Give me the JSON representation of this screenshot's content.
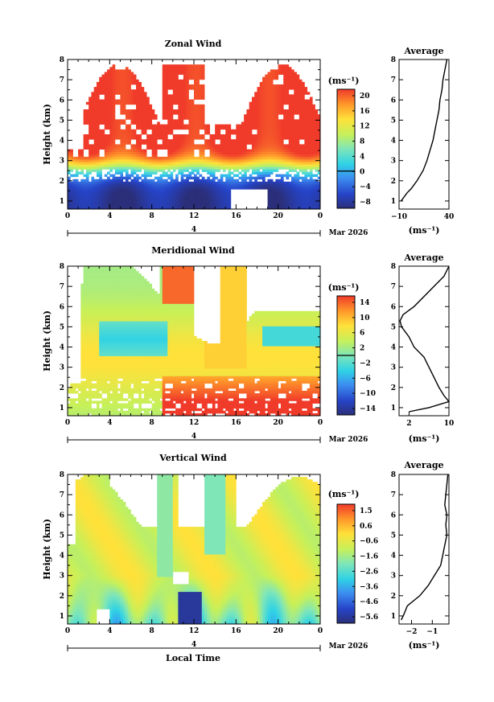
{
  "figure": {
    "xlabel": "Local Time",
    "date_label": "Mar 2026",
    "day_label": "4"
  },
  "chart_data": [
    {
      "type": "heatmap",
      "title": "Zonal Wind",
      "ylabel": "Height (km)",
      "xlabel": "Local Time",
      "x_ticks": [
        "0",
        "4",
        "8",
        "12",
        "16",
        "20",
        "0"
      ],
      "x_range": [
        0,
        24
      ],
      "y_ticks": [
        "1",
        "2",
        "3",
        "4",
        "5",
        "6",
        "7",
        "8"
      ],
      "y_range": [
        0.6,
        8.0
      ],
      "colorbar": {
        "unit": "(ms⁻¹)",
        "ticks": [
          "20",
          "16",
          "12",
          "8",
          "4",
          "0",
          "−4",
          "−8"
        ],
        "min": -10,
        "max": 22,
        "zero_contour": 0
      },
      "profile": {
        "title": "Average",
        "xlabel": "(ms⁻¹)",
        "x_ticks": [
          "−10",
          "40"
        ],
        "x_range": [
          -10,
          40
        ],
        "heights": [
          1.0,
          1.2,
          1.4,
          1.6,
          2.0,
          2.5,
          3.0,
          3.5,
          4.0,
          4.5,
          5.0,
          5.5,
          6.0,
          6.5,
          7.0,
          7.5,
          8.0
        ],
        "values": [
          -8,
          -5,
          -2,
          2,
          8,
          14,
          18,
          21,
          24,
          26,
          28,
          30,
          31,
          33,
          34,
          36,
          38
        ]
      }
    },
    {
      "type": "heatmap",
      "title": "Meridional Wind",
      "ylabel": "Height (km)",
      "xlabel": "Local Time",
      "x_ticks": [
        "0",
        "4",
        "8",
        "12",
        "16",
        "20",
        "0"
      ],
      "x_range": [
        0,
        24
      ],
      "y_ticks": [
        "1",
        "2",
        "3",
        "4",
        "5",
        "6",
        "7",
        "8"
      ],
      "y_range": [
        0.6,
        8.0
      ],
      "colorbar": {
        "unit": "(ms⁻¹)",
        "ticks": [
          "14",
          "10",
          "6",
          "2",
          "−2",
          "−6",
          "−10",
          "−14"
        ],
        "min": -16,
        "max": 16,
        "zero_contour": 0
      },
      "profile": {
        "title": "Average",
        "xlabel": "(ms⁻¹)",
        "x_ticks": [
          "2",
          "10"
        ],
        "x_range": [
          0,
          10
        ],
        "heights": [
          0.8,
          1.0,
          1.3,
          1.6,
          2.0,
          2.5,
          3.0,
          3.5,
          4.0,
          4.5,
          5.0,
          5.3,
          5.6,
          6.0,
          6.5,
          7.0,
          7.5,
          8.0
        ],
        "values": [
          2,
          6,
          10,
          9,
          8,
          7,
          6,
          5,
          3,
          2,
          0.5,
          0.2,
          0.8,
          3,
          5,
          7,
          9,
          10
        ]
      }
    },
    {
      "type": "heatmap",
      "title": "Vertical Wind",
      "ylabel": "Height (km)",
      "xlabel": "Local Time",
      "x_ticks": [
        "0",
        "4",
        "8",
        "12",
        "16",
        "20",
        "0"
      ],
      "x_range": [
        0,
        24
      ],
      "y_ticks": [
        "1",
        "2",
        "3",
        "4",
        "5",
        "6",
        "7",
        "8"
      ],
      "y_range": [
        0.6,
        8.0
      ],
      "colorbar": {
        "unit": "(ms⁻¹)",
        "ticks": [
          "1.5",
          "0.6",
          "−0.6",
          "−1.6",
          "−2.6",
          "−3.6",
          "−4.6",
          "−5.6"
        ],
        "min": -6.0,
        "max": 2.0
      },
      "profile": {
        "title": "Average",
        "xlabel": "(ms⁻¹)",
        "x_ticks": [
          "−2",
          "−1"
        ],
        "x_range": [
          -2.6,
          -0.2
        ],
        "heights": [
          0.8,
          1.0,
          1.5,
          2.0,
          2.5,
          3.0,
          3.5,
          4.0,
          4.5,
          5.0,
          5.5,
          6.0,
          6.5,
          7.0,
          7.5,
          8.0
        ],
        "values": [
          -2.5,
          -2.4,
          -2.2,
          -1.6,
          -1.2,
          -0.9,
          -0.6,
          -0.5,
          -0.4,
          -0.3,
          -0.35,
          -0.3,
          -0.4,
          -0.35,
          -0.3,
          -0.25
        ]
      }
    }
  ]
}
